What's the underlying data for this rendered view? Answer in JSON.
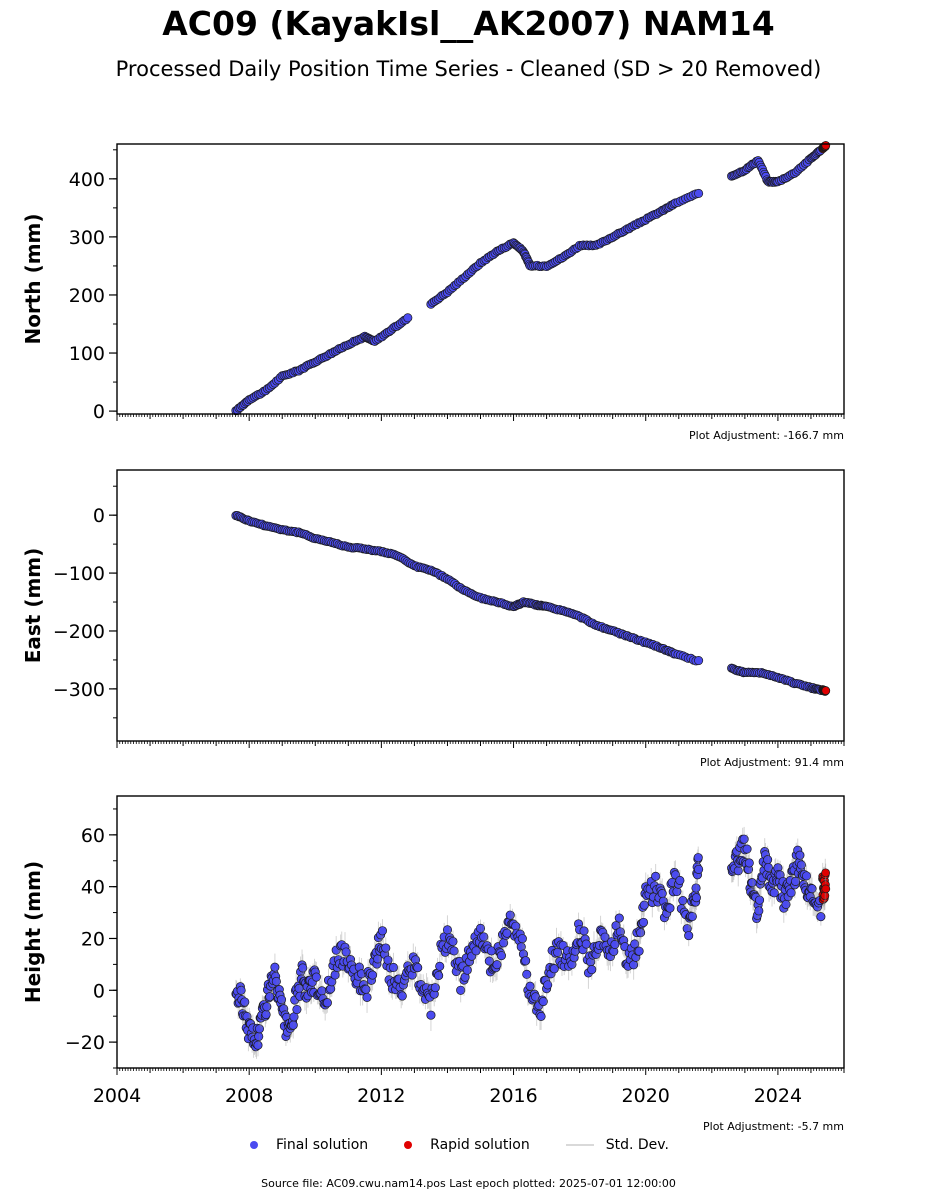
{
  "title": "AC09 (KayakIsl__AK2007) NAM14",
  "subtitle": "Processed Daily Position Time Series - Cleaned (SD > 20 Removed)",
  "legend": {
    "final": "Final solution",
    "rapid": "Rapid solution",
    "std": "Std. Dev."
  },
  "footer": "Source file: AC09.cwu.nam14.pos  Last epoch plotted: 2025-07-01 12:00:00",
  "colors": {
    "final": "#4b4bf0",
    "rapid": "#e00000",
    "edge": "#1a1a1a",
    "std": "#888888"
  },
  "chart_data": [
    {
      "type": "scatter",
      "ylabel": "North (mm)",
      "adjustment": "Plot Adjustment: -166.7 mm",
      "xlim": [
        2004,
        2026
      ],
      "ylim": [
        -5,
        460
      ],
      "yticks": [
        0,
        100,
        200,
        300,
        400
      ],
      "series": [
        {
          "name": "Final solution",
          "points": [
            [
              2007.6,
              0
            ],
            [
              2008.0,
              20
            ],
            [
              2008.5,
              35
            ],
            [
              2009.0,
              60
            ],
            [
              2009.5,
              70
            ],
            [
              2010.0,
              85
            ],
            [
              2010.5,
              100
            ],
            [
              2011.0,
              115
            ],
            [
              2011.5,
              128
            ],
            [
              2011.8,
              120
            ],
            [
              2012.3,
              140
            ],
            [
              2012.8,
              160
            ],
            [
              2013.5,
              185
            ],
            [
              2014.0,
              205
            ],
            [
              2014.5,
              230
            ],
            [
              2015.0,
              255
            ],
            [
              2015.5,
              275
            ],
            [
              2016.0,
              290
            ],
            [
              2016.3,
              275
            ],
            [
              2016.5,
              250
            ],
            [
              2017.0,
              250
            ],
            [
              2017.5,
              265
            ],
            [
              2018.0,
              285
            ],
            [
              2018.5,
              285
            ],
            [
              2019.0,
              300
            ],
            [
              2019.5,
              315
            ],
            [
              2020.0,
              330
            ],
            [
              2020.5,
              345
            ],
            [
              2020.9,
              358
            ],
            [
              2021.6,
              375
            ],
            [
              2022.6,
              405
            ],
            [
              2023.0,
              415
            ],
            [
              2023.4,
              432
            ],
            [
              2023.7,
              395
            ],
            [
              2024.0,
              395
            ],
            [
              2024.5,
              410
            ],
            [
              2025.0,
              435
            ],
            [
              2025.3,
              450
            ]
          ]
        },
        {
          "name": "Rapid solution",
          "points": [
            [
              2025.35,
              452
            ],
            [
              2025.4,
              455
            ],
            [
              2025.45,
              457
            ]
          ]
        }
      ]
    },
    {
      "type": "scatter",
      "ylabel": "East (mm)",
      "adjustment": "Plot Adjustment: 91.4 mm",
      "xlim": [
        2004,
        2026
      ],
      "ylim": [
        -390,
        78
      ],
      "yticks": [
        0,
        -100,
        -200,
        -300
      ],
      "series": [
        {
          "name": "Final solution",
          "points": [
            [
              2007.6,
              0
            ],
            [
              2008.0,
              -10
            ],
            [
              2008.5,
              -18
            ],
            [
              2009.0,
              -25
            ],
            [
              2009.5,
              -30
            ],
            [
              2010.0,
              -40
            ],
            [
              2010.5,
              -47
            ],
            [
              2011.0,
              -55
            ],
            [
              2011.5,
              -58
            ],
            [
              2012.0,
              -63
            ],
            [
              2012.5,
              -70
            ],
            [
              2013.0,
              -88
            ],
            [
              2013.5,
              -95
            ],
            [
              2014.0,
              -110
            ],
            [
              2014.5,
              -130
            ],
            [
              2015.0,
              -143
            ],
            [
              2015.5,
              -150
            ],
            [
              2016.0,
              -158
            ],
            [
              2016.3,
              -150
            ],
            [
              2016.7,
              -155
            ],
            [
              2017.0,
              -158
            ],
            [
              2017.5,
              -165
            ],
            [
              2018.0,
              -175
            ],
            [
              2018.5,
              -190
            ],
            [
              2019.0,
              -200
            ],
            [
              2019.5,
              -210
            ],
            [
              2020.0,
              -220
            ],
            [
              2020.5,
              -230
            ],
            [
              2020.9,
              -240
            ],
            [
              2021.6,
              -252
            ],
            [
              2022.6,
              -265
            ],
            [
              2023.0,
              -272
            ],
            [
              2023.5,
              -272
            ],
            [
              2024.0,
              -280
            ],
            [
              2024.5,
              -290
            ],
            [
              2025.0,
              -298
            ],
            [
              2025.3,
              -302
            ]
          ]
        },
        {
          "name": "Rapid solution",
          "points": [
            [
              2025.35,
              -302
            ],
            [
              2025.4,
              -303
            ],
            [
              2025.45,
              -304
            ]
          ]
        }
      ]
    },
    {
      "type": "scatter",
      "ylabel": "Height (mm)",
      "adjustment": "Plot Adjustment: -5.7 mm",
      "xlim": [
        2004,
        2026
      ],
      "ylim": [
        -30,
        75
      ],
      "yticks": [
        -20,
        0,
        20,
        40,
        60
      ],
      "xticks": [
        "2004",
        "2008",
        "2012",
        "2016",
        "2020",
        "2024"
      ],
      "xtick_values": [
        2004,
        2008,
        2012,
        2016,
        2020,
        2024
      ],
      "series": [
        {
          "name": "Final solution",
          "points": [
            [
              2007.6,
              0
            ],
            [
              2007.8,
              -5
            ],
            [
              2008.0,
              -15
            ],
            [
              2008.2,
              -20
            ],
            [
              2008.4,
              -10
            ],
            [
              2008.6,
              0
            ],
            [
              2008.8,
              5
            ],
            [
              2009.0,
              -10
            ],
            [
              2009.2,
              -18
            ],
            [
              2009.4,
              -5
            ],
            [
              2009.6,
              5
            ],
            [
              2009.8,
              0
            ],
            [
              2010.0,
              5
            ],
            [
              2010.3,
              -5
            ],
            [
              2010.6,
              10
            ],
            [
              2010.9,
              15
            ],
            [
              2011.2,
              8
            ],
            [
              2011.5,
              0
            ],
            [
              2011.8,
              10
            ],
            [
              2012.0,
              20
            ],
            [
              2012.3,
              5
            ],
            [
              2012.6,
              0
            ],
            [
              2012.9,
              10
            ],
            [
              2013.2,
              5
            ],
            [
              2013.5,
              -5
            ],
            [
              2013.8,
              15
            ],
            [
              2014.1,
              20
            ],
            [
              2014.4,
              5
            ],
            [
              2014.7,
              15
            ],
            [
              2015.0,
              20
            ],
            [
              2015.3,
              10
            ],
            [
              2015.6,
              15
            ],
            [
              2015.9,
              28
            ],
            [
              2016.2,
              20
            ],
            [
              2016.5,
              0
            ],
            [
              2016.8,
              -10
            ],
            [
              2017.1,
              10
            ],
            [
              2017.4,
              15
            ],
            [
              2017.7,
              10
            ],
            [
              2018.0,
              25
            ],
            [
              2018.3,
              10
            ],
            [
              2018.6,
              20
            ],
            [
              2018.9,
              15
            ],
            [
              2019.2,
              25
            ],
            [
              2019.5,
              10
            ],
            [
              2019.8,
              20
            ],
            [
              2020.0,
              35
            ],
            [
              2020.3,
              40
            ],
            [
              2020.6,
              30
            ],
            [
              2020.9,
              45
            ],
            [
              2021.3,
              25
            ],
            [
              2021.5,
              35
            ],
            [
              2021.6,
              50
            ],
            [
              2022.6,
              45
            ],
            [
              2022.8,
              50
            ],
            [
              2023.0,
              55
            ],
            [
              2023.2,
              40
            ],
            [
              2023.4,
              30
            ],
            [
              2023.6,
              50
            ],
            [
              2023.8,
              40
            ],
            [
              2024.0,
              45
            ],
            [
              2024.2,
              35
            ],
            [
              2024.4,
              40
            ],
            [
              2024.6,
              50
            ],
            [
              2024.8,
              45
            ],
            [
              2025.0,
              35
            ],
            [
              2025.3,
              30
            ]
          ]
        },
        {
          "name": "Rapid solution",
          "points": [
            [
              2025.35,
              40
            ],
            [
              2025.4,
              38
            ],
            [
              2025.45,
              42
            ]
          ]
        }
      ]
    }
  ]
}
